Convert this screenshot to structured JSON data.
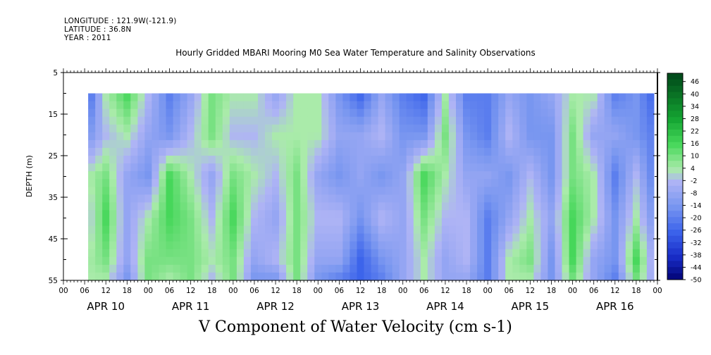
{
  "header": {
    "longitude": "LONGITUDE : 121.9W(-121.9)",
    "latitude": "LATITUDE : 36.8N",
    "year": "YEAR : 2011"
  },
  "chart_data": {
    "type": "heatmap",
    "title": "Hourly Gridded MBARI Mooring M0 Sea Water Temperature and Salinity Observations",
    "variable_label": "V Component of Water Velocity (cm s-1)",
    "ylabel": "DEPTH (m)",
    "yticks": [
      5,
      15,
      25,
      35,
      45,
      55
    ],
    "ylim": [
      5,
      55
    ],
    "y_inverted": true,
    "data_depth_range": [
      10,
      55
    ],
    "x_hour_ticks": [
      "00",
      "06",
      "12",
      "18",
      "00",
      "06",
      "12",
      "18",
      "00",
      "06",
      "12",
      "18",
      "00",
      "06",
      "12",
      "18",
      "00",
      "06",
      "12",
      "18",
      "00",
      "06",
      "12",
      "18",
      "00",
      "06",
      "12",
      "18",
      "00"
    ],
    "x_day_labels": [
      "APR 10",
      "APR 11",
      "APR 12",
      "APR 13",
      "APR 14",
      "APR 15",
      "APR 16"
    ],
    "x_start": "APR 10 00",
    "x_end": "APR 17 00",
    "data_start_hour": 7,
    "data_end_hour": 167,
    "colorbar": {
      "labels": [
        "46",
        "40",
        "34",
        "28",
        "22",
        "16",
        "10",
        "4",
        "-2",
        "-8",
        "-14",
        "-20",
        "-26",
        "-32",
        "-38",
        "-44",
        "-50"
      ],
      "min": -50,
      "max": 50
    },
    "approx_field": {
      "column_hours": [
        7,
        12,
        18,
        24,
        30,
        36,
        42,
        48,
        54,
        60,
        66,
        72,
        78,
        84,
        90,
        96,
        102,
        108,
        114,
        120,
        126,
        132,
        138,
        144,
        150,
        156,
        162,
        167
      ],
      "row_depths": [
        10,
        20,
        30,
        40,
        50,
        55
      ],
      "values": [
        [
          -26,
          4,
          16,
          -2,
          -20,
          -8,
          10,
          4,
          4,
          -8,
          4,
          4,
          -14,
          -26,
          -8,
          -20,
          -26,
          4,
          -20,
          -20,
          -8,
          -14,
          -8,
          4,
          4,
          -20,
          -14,
          -26
        ],
        [
          -14,
          -2,
          4,
          -8,
          -14,
          -2,
          10,
          -2,
          -2,
          4,
          4,
          4,
          -8,
          -8,
          -2,
          -14,
          -14,
          10,
          -14,
          -20,
          -2,
          -14,
          -14,
          10,
          -8,
          -8,
          -14,
          -20
        ],
        [
          4,
          10,
          -8,
          -14,
          16,
          4,
          -8,
          10,
          4,
          -2,
          10,
          -8,
          -14,
          -8,
          -14,
          -8,
          16,
          4,
          -8,
          -8,
          -14,
          -2,
          -14,
          10,
          4,
          -20,
          -2,
          -20
        ],
        [
          -2,
          16,
          -8,
          4,
          16,
          10,
          -2,
          16,
          -2,
          -8,
          10,
          -2,
          -2,
          -14,
          -2,
          -8,
          10,
          -2,
          -2,
          -20,
          -8,
          4,
          -8,
          16,
          4,
          -14,
          4,
          -14
        ],
        [
          4,
          10,
          -8,
          10,
          10,
          10,
          4,
          10,
          -8,
          -2,
          10,
          -8,
          -8,
          -26,
          -14,
          -8,
          4,
          -8,
          -2,
          -20,
          4,
          10,
          -14,
          16,
          -8,
          -14,
          16,
          -8
        ],
        [
          4,
          4,
          -14,
          10,
          4,
          10,
          -2,
          10,
          -14,
          -14,
          10,
          -14,
          -20,
          -26,
          -20,
          -8,
          4,
          -8,
          -8,
          -20,
          4,
          4,
          -14,
          10,
          -8,
          -20,
          10,
          -8
        ]
      ]
    }
  }
}
